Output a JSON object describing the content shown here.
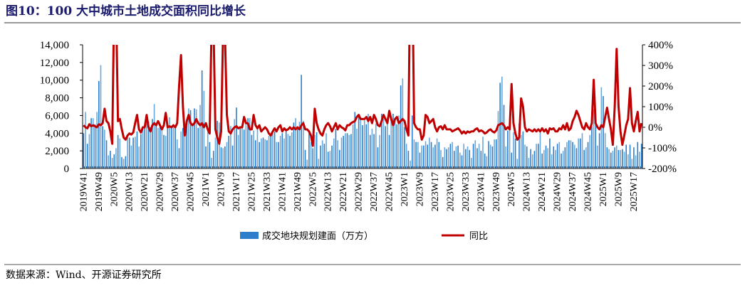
{
  "title": "图10：100 大中城市土地成交面积同比增长",
  "source": "数据来源：Wind、开源证券研究所",
  "colors": {
    "bar": "#2E7FCB",
    "bar_alt": "#6AA8DE",
    "line": "#C00000",
    "title": "#1a1a6e"
  },
  "chart_data": {
    "type": "bar+line",
    "title": "100 大中城市土地成交面积同比增长",
    "legend": [
      "成交地块规划建面（万方）",
      "同比"
    ],
    "legend_position": "bottom",
    "left_axis": {
      "min": 0,
      "max": 14000,
      "ticks": [
        "0",
        "2,000",
        "4,000",
        "6,000",
        "8,000",
        "10,000",
        "12,000",
        "14,000"
      ]
    },
    "right_axis": {
      "min": -200,
      "max": 400,
      "ticks": [
        "-200%",
        "-100%",
        "0%",
        "100%",
        "200%",
        "300%",
        "400%"
      ]
    },
    "x_start": "2019W41",
    "x_tick_labels": [
      "2019W41",
      "2019W49",
      "2020W5",
      "2020W13",
      "2020W21",
      "2020W29",
      "2020W37",
      "2020W45",
      "2021W1",
      "2021W9",
      "2021W17",
      "2021W25",
      "2021W33",
      "2021W41",
      "2021W49",
      "2022W5",
      "2022W13",
      "2022W21",
      "2022W29",
      "2022W37",
      "2022W45",
      "2023W1",
      "2023W9",
      "2023W17",
      "2023W25",
      "2023W33",
      "2023W41",
      "2023W49",
      "2024W5",
      "2024W13",
      "2024W21",
      "2024W29",
      "2024W37",
      "2024W45",
      "2025W1",
      "2025W9",
      "2025W17"
    ],
    "x_tick_every": 8,
    "series": [
      {
        "name": "成交地块规划建面（万方）",
        "type": "bar",
        "values": [
          4000,
          6400,
          2800,
          3900,
          5700,
          5700,
          5000,
          6400,
          9900,
          11700,
          4800,
          4400,
          3200,
          1500,
          2000,
          1200,
          1600,
          2300,
          3800,
          3400,
          1300,
          1100,
          1400,
          3800,
          3500,
          2600,
          3500,
          3600,
          4200,
          2500,
          3900,
          4600,
          4900,
          5200,
          5300,
          4700,
          5600,
          7300,
          5000,
          4600,
          4800,
          4400,
          3800,
          3700,
          5000,
          5800,
          4800,
          4700,
          4700,
          3300,
          2300,
          4200,
          4600,
          3700,
          4900,
          6800,
          6600,
          5000,
          6800,
          6700,
          4600,
          7200,
          11100,
          8800,
          2500,
          4600,
          3000,
          1200,
          2000,
          3500,
          5400,
          5200,
          2400,
          2300,
          2500,
          3000,
          3700,
          4800,
          2600,
          5600,
          6900,
          3800,
          4700,
          4600,
          4400,
          5500,
          5700,
          5700,
          3800,
          4300,
          3200,
          4600,
          3000,
          3400,
          3500,
          3300,
          3200,
          3700,
          4000,
          4000,
          4200,
          3000,
          3000,
          3700,
          4000,
          3400,
          4400,
          3900,
          3700,
          4100,
          5200,
          5700,
          4500,
          5300,
          10600,
          5400,
          2100,
          1000,
          4000,
          3000,
          2300,
          3800,
          4100,
          1100,
          2600,
          3200,
          2800,
          4000,
          1900,
          2000,
          2600,
          3400,
          4500,
          3200,
          2100,
          3500,
          3700,
          4000,
          4000,
          3800,
          3900,
          5000,
          6400,
          4500,
          6000,
          5800,
          4900,
          5500,
          5000,
          6200,
          3800,
          4500,
          3900,
          5100,
          2400,
          3800,
          6200,
          5600,
          4800,
          5800,
          3800,
          5800,
          6200,
          5300,
          5000,
          6000,
          9400,
          10200,
          4700,
          2800,
          2000,
          900,
          6000,
          3300,
          3000,
          3000,
          1800,
          2600,
          2600,
          3100,
          2700,
          3500,
          3000,
          2400,
          2700,
          3400,
          3000,
          2100,
          1300,
          2400,
          2200,
          2400,
          2800,
          3000,
          2000,
          2500,
          2600,
          1800,
          1500,
          2800,
          2200,
          2500,
          2100,
          1200,
          2800,
          3200,
          2300,
          2800,
          2000,
          3600,
          1700,
          1400,
          3100,
          2700,
          2500,
          3300,
          3300,
          6500,
          9700,
          10400,
          7200,
          2500,
          4300,
          4500,
          1800,
          4100,
          3400,
          1100,
          5100,
          3800,
          4200,
          2700,
          2500,
          1200,
          2200,
          1600,
          2000,
          2800,
          2800,
          4200,
          1700,
          2100,
          2600,
          2300,
          3400,
          1600,
          2500,
          2100,
          2800,
          3000,
          1700,
          2000,
          2400,
          3000,
          3200,
          3200,
          3000,
          2700,
          2300,
          3400,
          3400,
          4000,
          2100,
          2400,
          3000,
          3800,
          4800,
          6700,
          5700,
          2600,
          4000,
          9200,
          8200,
          4000,
          2400,
          2200,
          1800,
          2000,
          2400,
          2600,
          2100,
          2100,
          2200,
          1900,
          2700,
          1600,
          2700,
          1100,
          2400,
          1500,
          3000,
          1900,
          2800
        ]
      },
      {
        "name": "同比",
        "type": "line",
        "unit": "%",
        "values": [
          10,
          0,
          -5,
          15,
          5,
          10,
          5,
          0,
          15,
          10,
          20,
          90,
          30,
          20,
          -20,
          -80,
          600,
          600,
          30,
          40,
          -10,
          -50,
          -60,
          -40,
          -30,
          -35,
          -25,
          20,
          60,
          -10,
          -25,
          0,
          0,
          60,
          0,
          -20,
          10,
          20,
          10,
          30,
          10,
          -10,
          10,
          70,
          0,
          5,
          0,
          10,
          0,
          20,
          200,
          350,
          100,
          -40,
          30,
          60,
          20,
          10,
          20,
          40,
          20,
          10,
          20,
          0,
          20,
          -10,
          -30,
          500,
          500,
          -10,
          -50,
          -80,
          -20,
          450,
          450,
          60,
          -20,
          -30,
          -10,
          0,
          5,
          -5,
          0,
          0,
          50,
          20,
          20,
          -10,
          -10,
          60,
          10,
          -5,
          10,
          -20,
          -10,
          0,
          -10,
          -30,
          -40,
          -20,
          -5,
          -20,
          0,
          10,
          -20,
          -5,
          -15,
          -10,
          0,
          -10,
          0,
          -10,
          0,
          -10,
          10,
          20,
          -10,
          -10,
          -20,
          -40,
          -90,
          90,
          20,
          -10,
          -30,
          -40,
          -10,
          10,
          20,
          5,
          -20,
          0,
          20,
          -10,
          10,
          0,
          -5,
          -15,
          10,
          10,
          20,
          25,
          30,
          50,
          60,
          40,
          40,
          40,
          50,
          30,
          50,
          20,
          60,
          40,
          10,
          5,
          30,
          60,
          40,
          20,
          80,
          40,
          10,
          40,
          50,
          20,
          30,
          40,
          30,
          -10,
          -40,
          800,
          800,
          20,
          0,
          -10,
          -10,
          -60,
          -40,
          60,
          50,
          20,
          30,
          40,
          0,
          -20,
          0,
          5,
          -10,
          10,
          -10,
          -10,
          -10,
          -20,
          -15,
          -10,
          -5,
          -15,
          -30,
          -20,
          -30,
          -20,
          -25,
          -20,
          -20,
          -10,
          -5,
          -20,
          -15,
          -20,
          -30,
          -25,
          -15,
          -10,
          -20,
          -25,
          -15,
          10,
          15,
          20,
          10,
          -10,
          0,
          -10,
          210,
          20,
          -30,
          -60,
          -50,
          140,
          100,
          0,
          -20,
          -10,
          -15,
          -20,
          -10,
          -20,
          -10,
          -20,
          -5,
          -20,
          -10,
          -30,
          -5,
          -10,
          -5,
          -20,
          -20,
          -5,
          -10,
          10,
          -10,
          20,
          -15,
          -5,
          30,
          50,
          80,
          60,
          30,
          0,
          -10,
          20,
          0,
          -10,
          20,
          230,
          20,
          0,
          -10,
          10,
          0,
          50,
          95,
          40,
          -10,
          -85,
          100,
          380,
          100,
          -20,
          -85,
          -40,
          10,
          40,
          190,
          20,
          -20,
          30,
          75,
          -20,
          20
        ]
      }
    ]
  }
}
